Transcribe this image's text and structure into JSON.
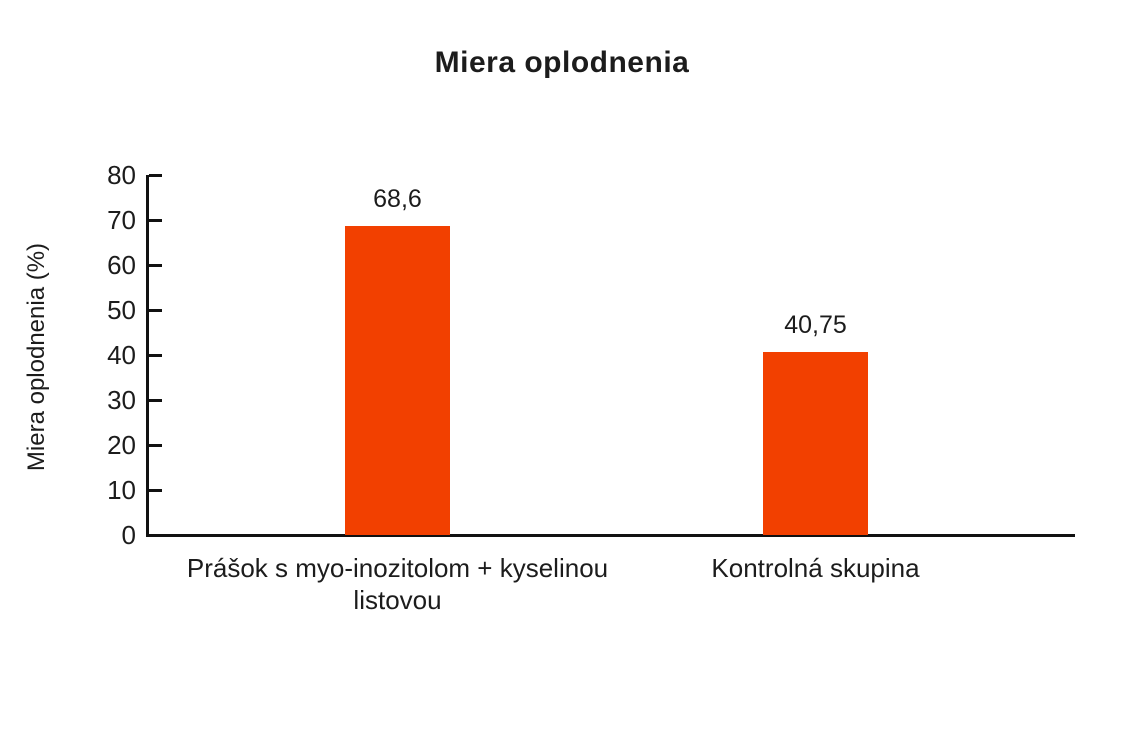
{
  "chart_data": {
    "type": "bar",
    "title": "Miera oplodnenia",
    "xlabel": "",
    "ylabel": "Miera oplodnenia (%)",
    "categories": [
      "Prášok s myo-inozitolom + kyselinou listovou",
      "Kontrolná skupina"
    ],
    "values": [
      68.6,
      40.75
    ],
    "value_labels": [
      "68,6",
      "40,75"
    ],
    "ylim": [
      0,
      80
    ],
    "yticks": [
      0,
      10,
      20,
      30,
      40,
      50,
      60,
      70,
      80
    ],
    "bar_color": "#F24000",
    "text_color": "#1C1C1C",
    "axis_color": "#111111",
    "grid": "off",
    "legend": "none"
  }
}
